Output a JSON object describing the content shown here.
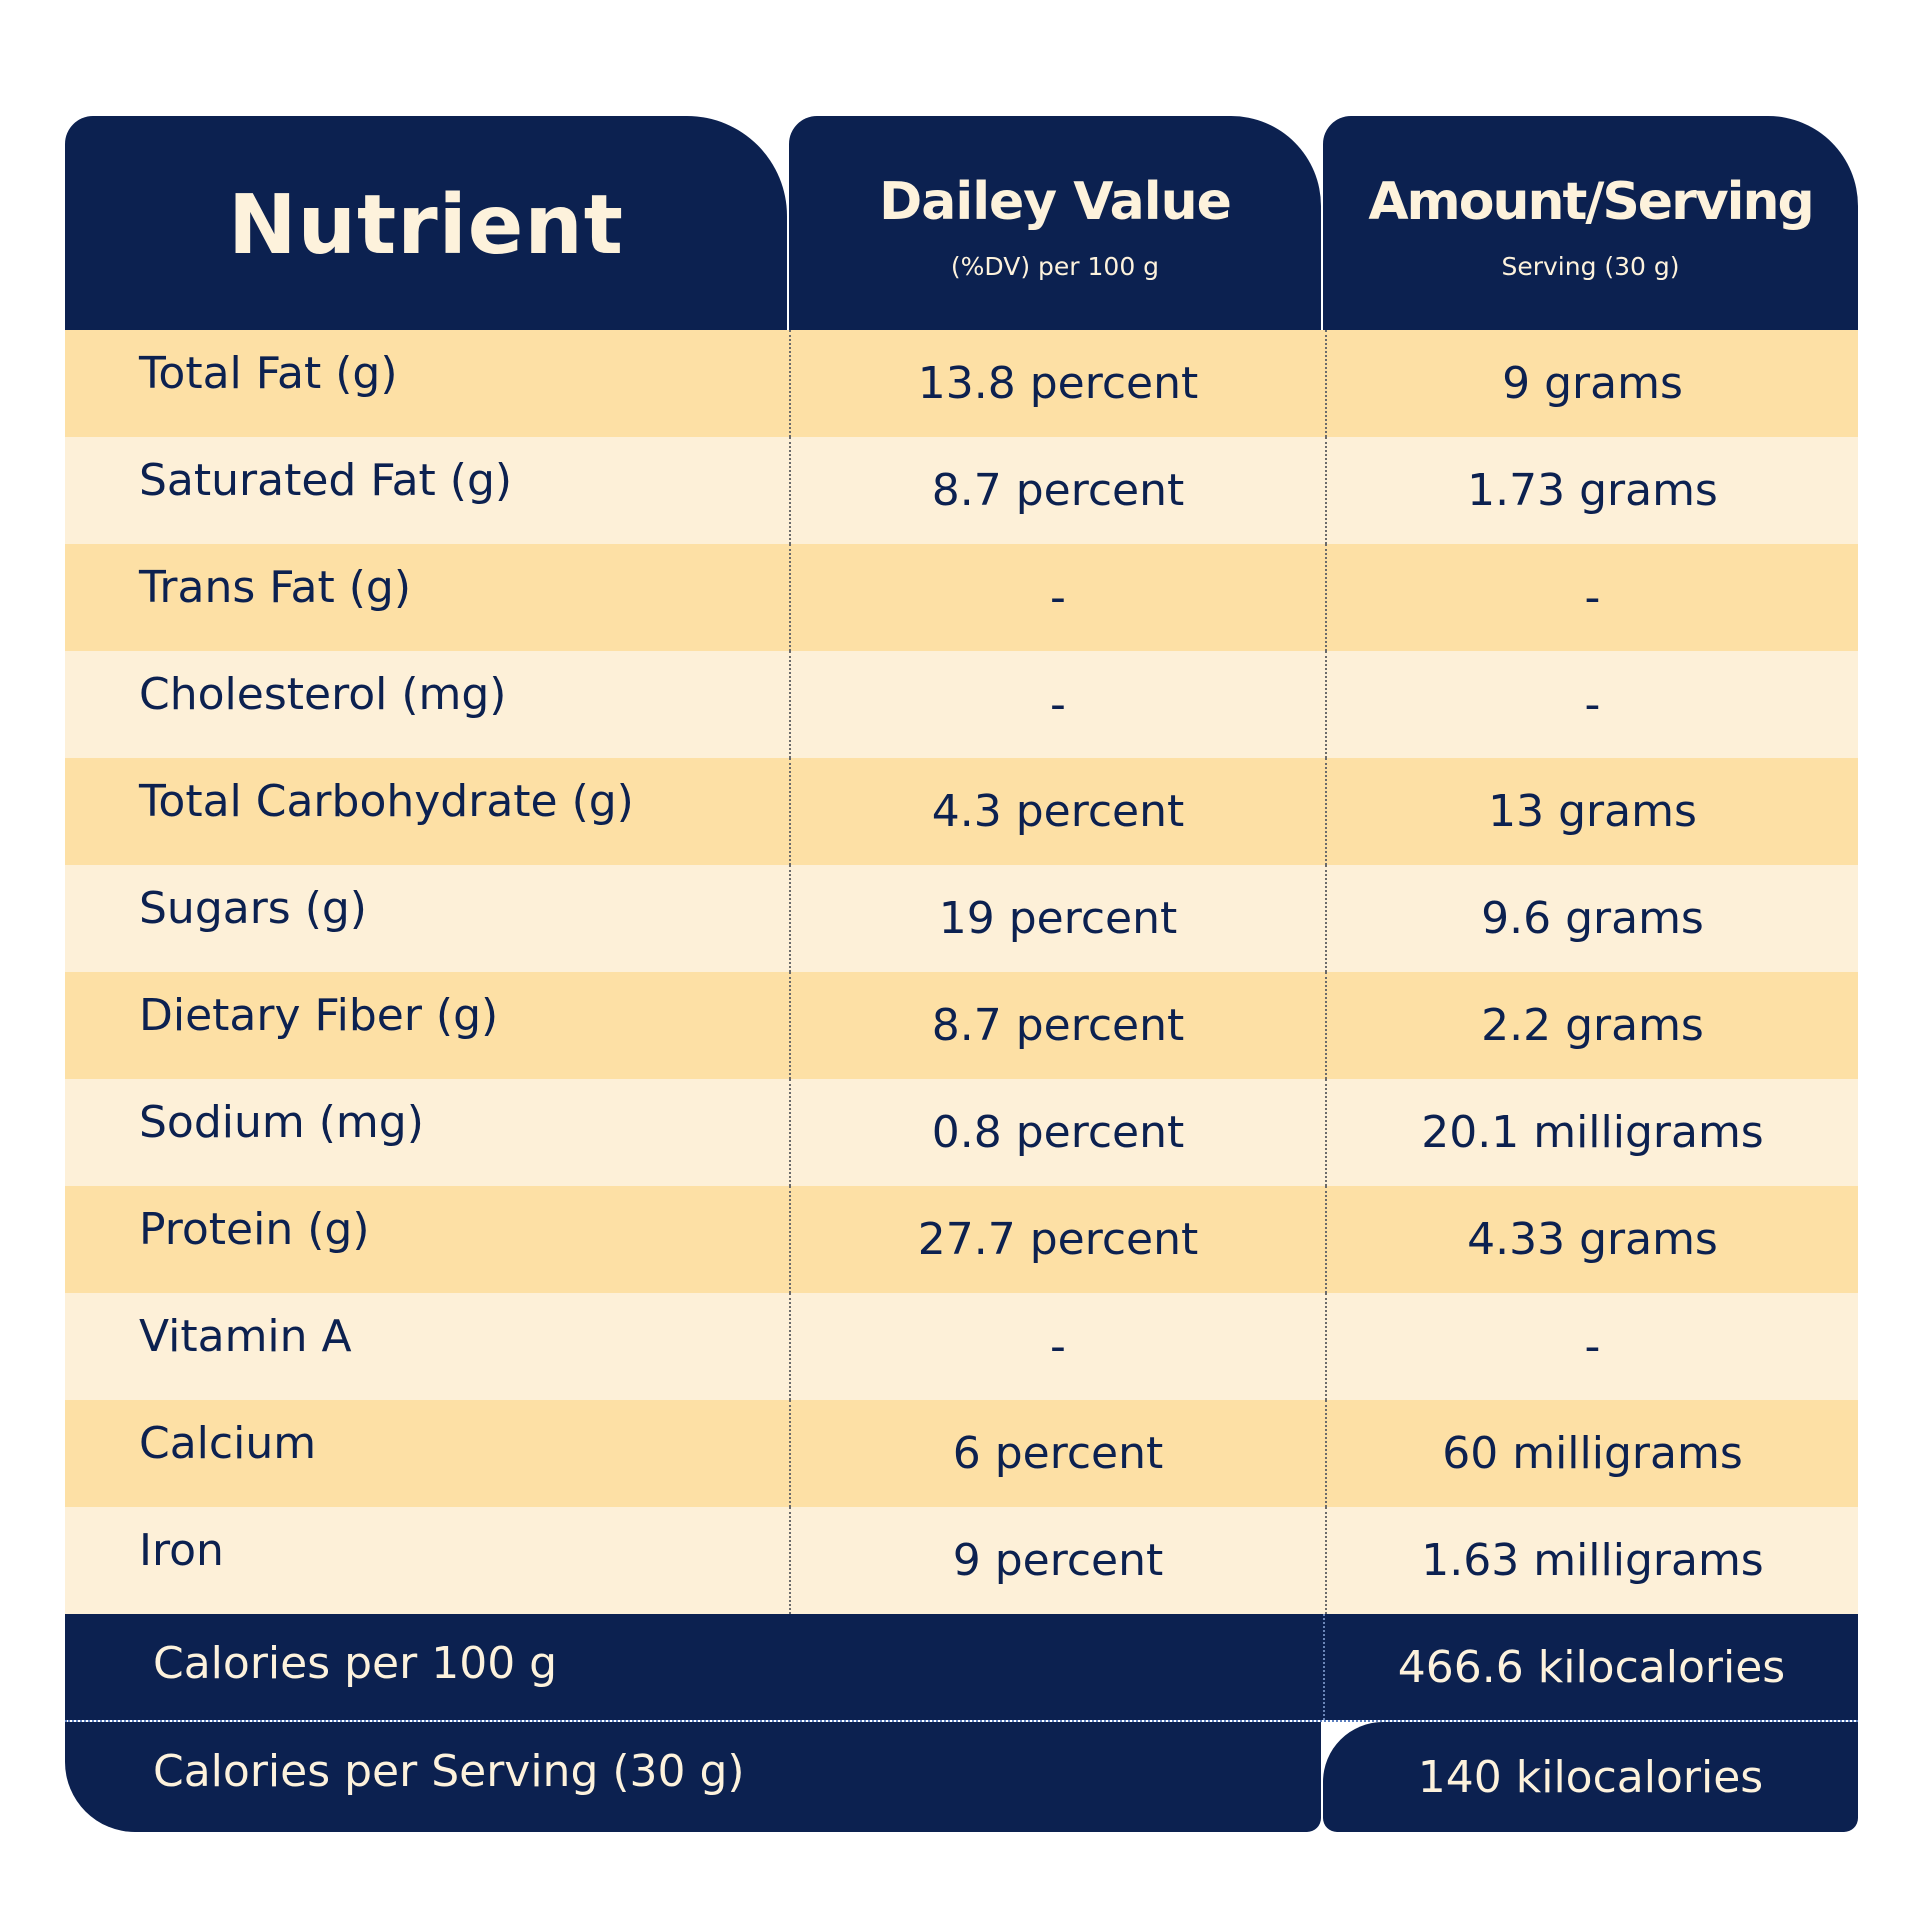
{
  "header": {
    "nutrient": "Nutrient",
    "daily_value": "Dailey Value",
    "daily_value_sub": "(%DV) per 100 g",
    "amount": "Amount/Serving",
    "amount_sub": "Serving (30 g)"
  },
  "rows": [
    {
      "name": "Total Fat (g)",
      "dv": "13.8 percent",
      "amount": "9 grams"
    },
    {
      "name": "Saturated Fat (g)",
      "dv": "8.7 percent",
      "amount": "1.73 grams"
    },
    {
      "name": "Trans Fat (g)",
      "dv": "-",
      "amount": "-"
    },
    {
      "name": "Cholesterol (mg)",
      "dv": "-",
      "amount": "-"
    },
    {
      "name": "Total Carbohydrate (g)",
      "dv": "4.3 percent",
      "amount": "13 grams"
    },
    {
      "name": "Sugars (g)",
      "dv": "19 percent",
      "amount": "9.6 grams"
    },
    {
      "name": "Dietary Fiber (g)",
      "dv": "8.7 percent",
      "amount": "2.2 grams"
    },
    {
      "name": "Sodium (mg)",
      "dv": "0.8 percent",
      "amount": "20.1 milligrams"
    },
    {
      "name": "Protein (g)",
      "dv": "27.7 percent",
      "amount": "4.33 grams"
    },
    {
      "name": "Vitamin A",
      "dv": "-",
      "amount": "-"
    },
    {
      "name": "Calcium",
      "dv": "6 percent",
      "amount": "60 milligrams"
    },
    {
      "name": "Iron",
      "dv": "9 percent",
      "amount": "1.63 milligrams"
    }
  ],
  "footer": {
    "cal_100_label": "Calories per 100 g",
    "cal_100_value": "466.6 kilocalories",
    "cal_serving_label": "Calories per Serving (30 g)",
    "cal_serving_value": "140 kilocalories"
  },
  "colors": {
    "navy": "#0c2150",
    "row_dark": "#fde0a5",
    "row_light": "#fdf0d8",
    "header_text": "#fdf2dc"
  }
}
